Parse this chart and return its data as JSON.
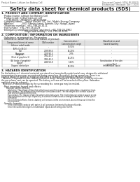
{
  "header_left": "Product Name: Lithium Ion Battery Cell",
  "header_right_line1": "Document Control: SDS-LIB-00010",
  "header_right_line2": "Established / Revision: Dec.7,2010",
  "title": "Safety data sheet for chemical products (SDS)",
  "section1_title": "1. PRODUCT AND COMPANY IDENTIFICATION",
  "section1_lines": [
    "  · Product name: Lithium Ion Battery Cell",
    "  · Product code: Cylindrical-type cell",
    "       (UR18650J, UR18650U, UR18650A)",
    "  · Company name:    Sanyo Electric Co., Ltd., Mobile Energy Company",
    "  · Address:           2001 Kamino-kawa, Sumoto-City, Hyogo, Japan",
    "  · Telephone number:  +81-799-26-4111",
    "  · Fax number:  +81-799-26-4129",
    "  · Emergency telephone number (daytime): +81-799-26-3962",
    "                                 (Night and holiday): +81-799-26-4101"
  ],
  "section2_title": "2. COMPOSITION / INFORMATION ON INGREDIENTS",
  "section2_sub": "  · Substance or preparation: Preparation",
  "section2_sub2": "  · Information about the chemical nature of product:",
  "table_col_headers": [
    "Component/chemical name",
    "CAS number",
    "Concentration /\nConcentration range",
    "Classification and\nhazard labeling"
  ],
  "table_rows": [
    [
      "Lithium cobalt oxide\n(LiMn-Co-Ni-O₄)",
      "-",
      "30-50%",
      "-"
    ],
    [
      "Iron",
      "7439-89-6",
      "10-20%",
      "-"
    ],
    [
      "Aluminum",
      "7429-90-5",
      "2-8%",
      "-"
    ],
    [
      "Graphite\n(Kind of graphite-1)\n(All kinds of graphite)",
      "7782-42-5\n7782-42-5",
      "10-25%",
      "-"
    ],
    [
      "Copper",
      "7440-50-8",
      "5-15%",
      "Sensitization of the skin\ngroup No.2"
    ],
    [
      "Organic electrolyte",
      "-",
      "10-20%",
      "Inflammable liquid"
    ]
  ],
  "section3_title": "3. HAZARDS IDENTIFICATION",
  "section3_para_lines": [
    "For the battery cell, chemical materials are stored in a hermetically-sealed metal case, designed to withstand",
    "temperatures or pressures encountered during normal use. As a result, during normal use, there is no",
    "physical danger of ignition or explosion and there is no danger of hazardous material leakage.",
    "  However, if exposed to a fire, added mechanical shock, decomposed, short-electric current by miss-use,",
    "the gas release vent can be operated. The battery cell case will be breached of fire-pillars. Hazardous",
    "materials may be released.",
    "  Moreover, if heated strongly by the surrounding fire, some gas may be emitted."
  ],
  "section3_important": "  · Most important hazard and effects:",
  "section3_human": "       Human health effects:",
  "section3_human_lines": [
    "            Inhalation: The release of the electrolyte has an anesthesia action and stimulates a respiratory tract.",
    "            Skin contact: The release of the electrolyte stimulates a skin. The electrolyte skin contact causes a",
    "            sore and stimulation on the skin.",
    "            Eye contact: The release of the electrolyte stimulates eyes. The electrolyte eye contact causes a sore",
    "            and stimulation on the eye. Especially, a substance that causes a strong inflammation of the eyes is",
    "            contained.",
    "            Environmental effects: Since a battery cell remains in the environment, do not throw out it into the",
    "            environment."
  ],
  "section3_specific": "  · Specific hazards:",
  "section3_specific_lines": [
    "            If the electrolyte contacts with water, it will generate detrimental hydrogen fluoride.",
    "            Since the used-electrolyte is inflammable liquid, do not bring close to fire."
  ],
  "bg_color": "#ffffff",
  "text_color": "#1a1a1a",
  "table_line_color": "#aaaaaa",
  "title_fontsize": 4.8,
  "body_fontsize": 2.8,
  "small_fontsize": 2.3,
  "header_fontsize": 2.2
}
